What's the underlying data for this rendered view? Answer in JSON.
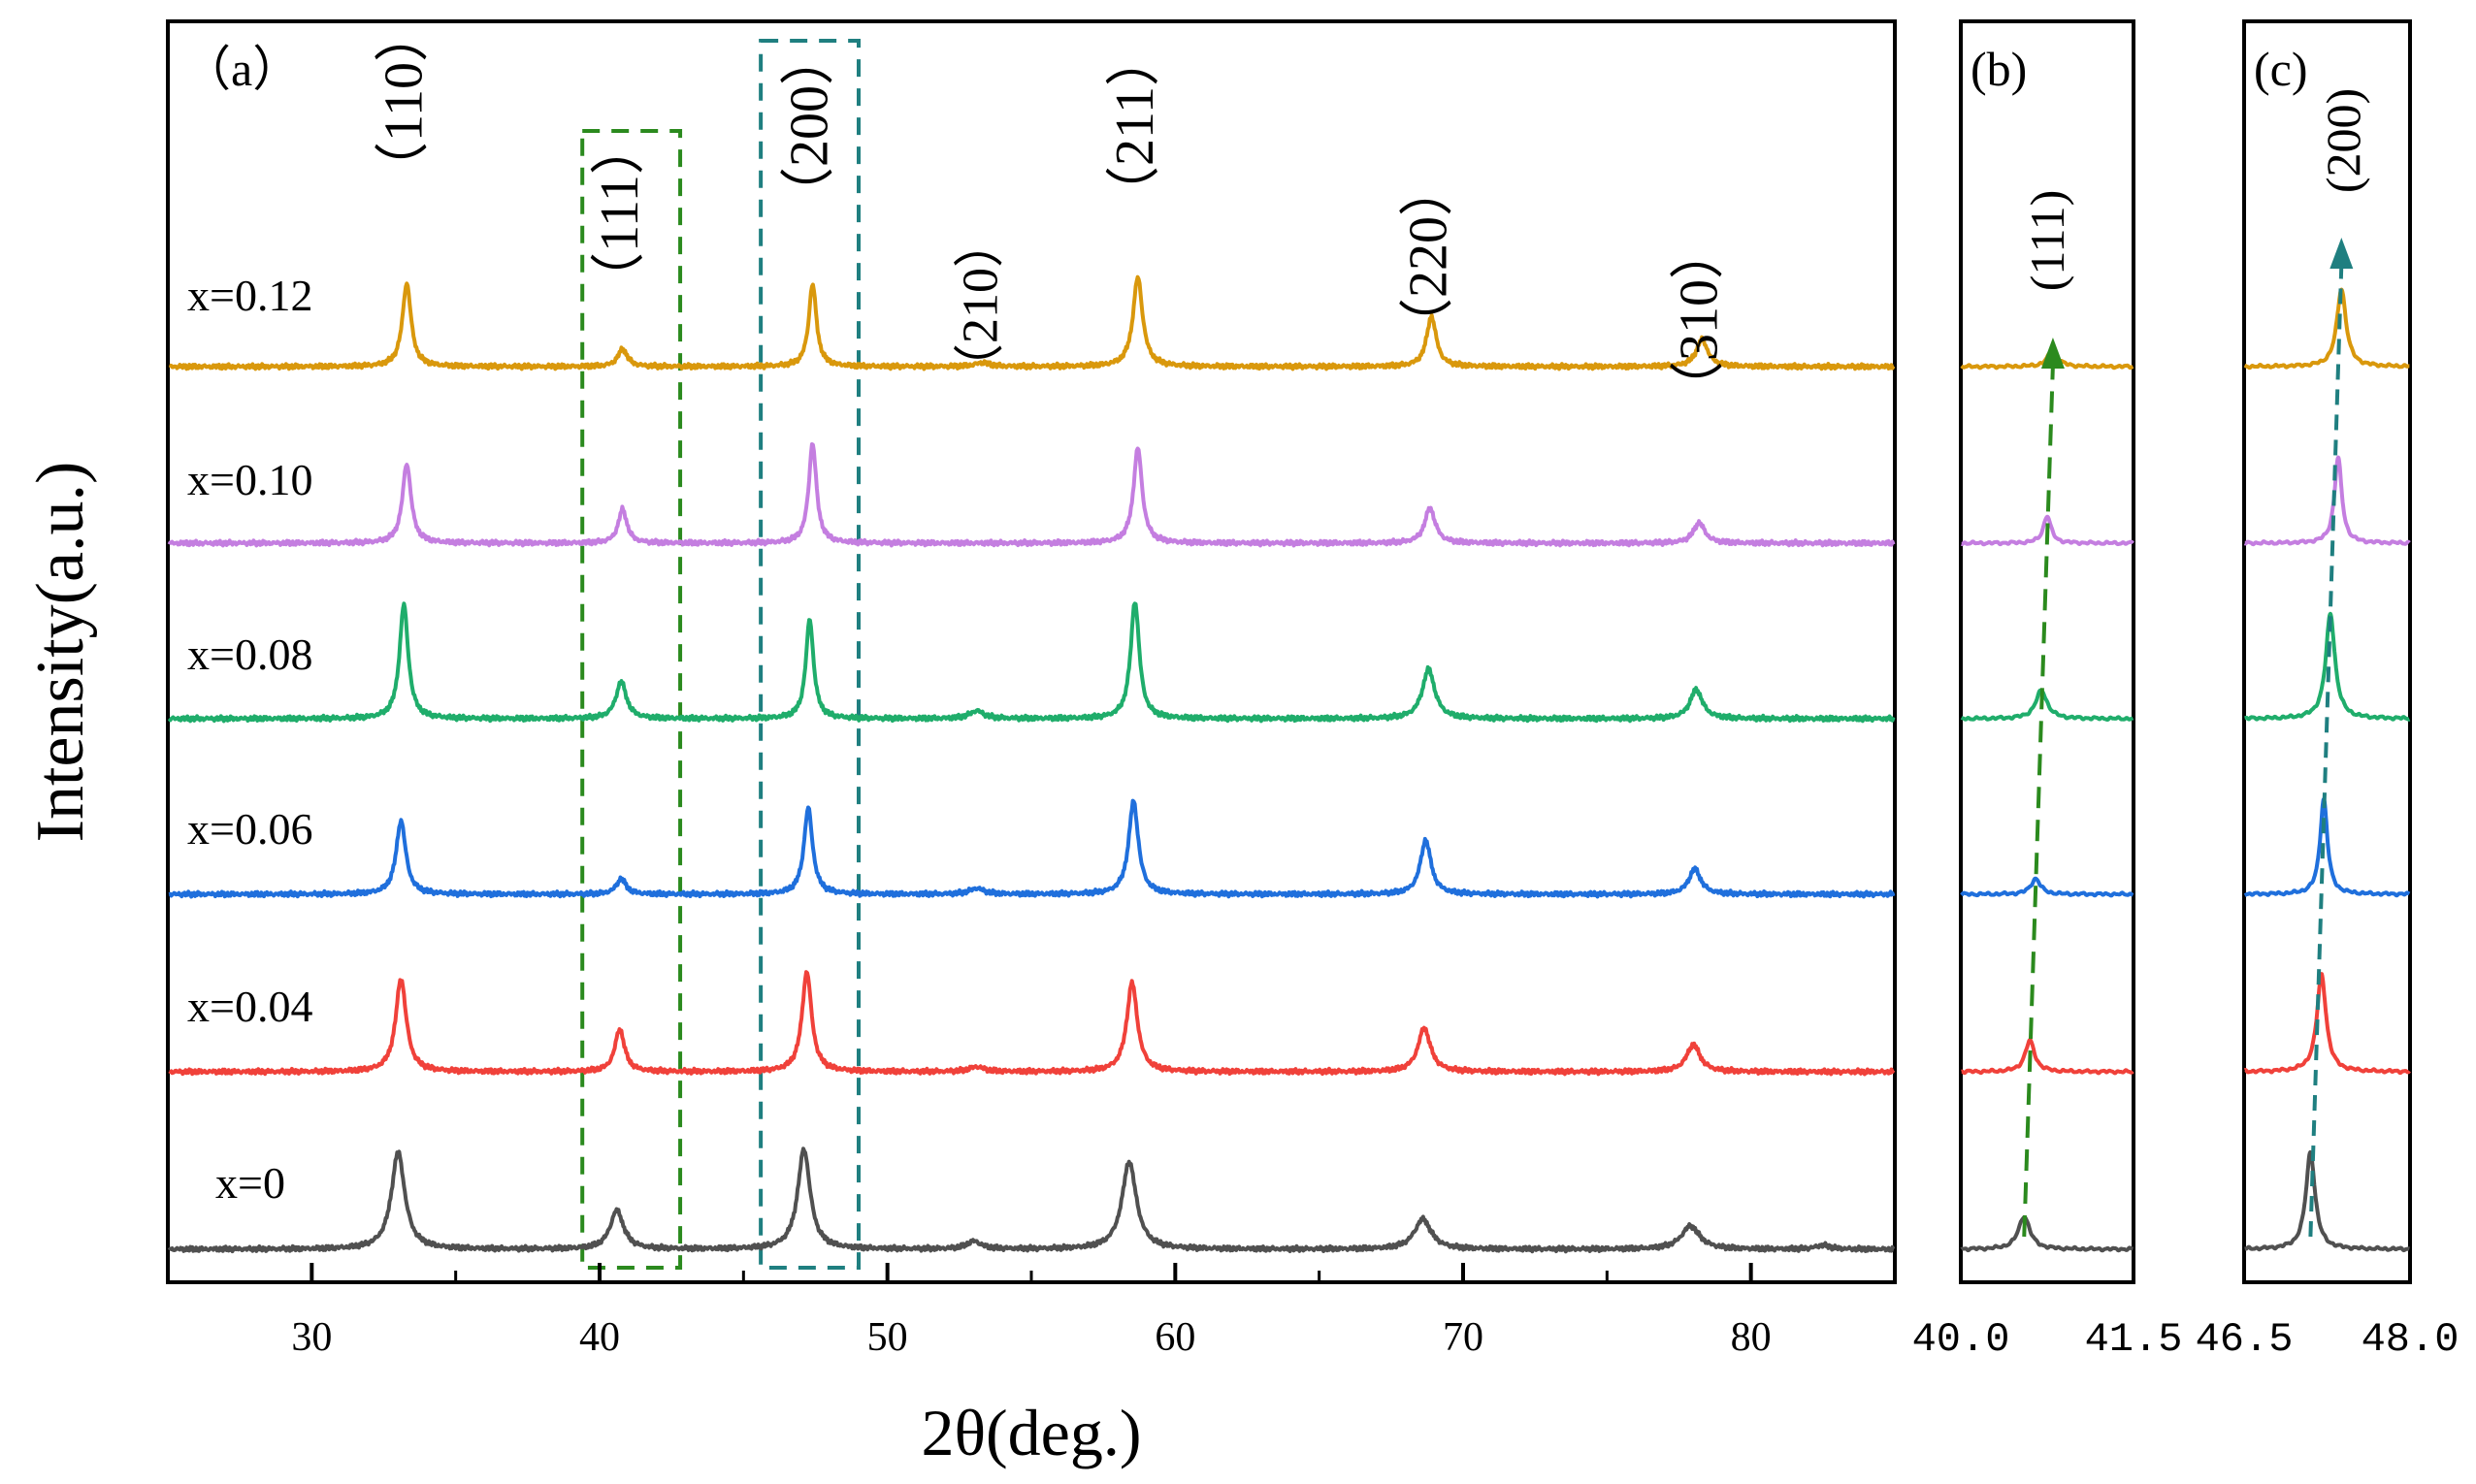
{
  "chart_data": [
    {
      "panel": "a",
      "type": "line",
      "panel_label": "（a）",
      "xlabel": "2θ(deg.)",
      "ylabel": "Intensity(a.u.)",
      "xlim": [
        25,
        85
      ],
      "xticks": [
        30,
        40,
        50,
        60,
        70,
        80
      ],
      "minor_xticks": [
        35,
        45,
        55,
        65,
        75
      ],
      "series": [
        {
          "name": "x=0",
          "color": "#505050",
          "peaks": [
            [
              33.0,
              100,
              0.28
            ],
            [
              40.6,
              40,
              0.28
            ],
            [
              47.1,
              103,
              0.26
            ],
            [
              53.0,
              8,
              0.3
            ],
            [
              58.4,
              90,
              0.3
            ],
            [
              68.6,
              31,
              0.35
            ],
            [
              77.9,
              24,
              0.38
            ],
            [
              82.5,
              4,
              0.3
            ]
          ]
        },
        {
          "name": "x=0.04",
          "color": "#f0413a",
          "peaks": [
            [
              33.1,
              96,
              0.22
            ],
            [
              40.7,
              44,
              0.2
            ],
            [
              47.2,
              103,
              0.2
            ],
            [
              53.1,
              5,
              0.3
            ],
            [
              58.5,
              92,
              0.22
            ],
            [
              68.65,
              45,
              0.26
            ],
            [
              78.0,
              28,
              0.28
            ]
          ]
        },
        {
          "name": "x=0.06",
          "color": "#1f6fdc",
          "peaks": [
            [
              33.1,
              76,
              0.2
            ],
            [
              40.75,
              16,
              0.2
            ],
            [
              47.25,
              89,
              0.18
            ],
            [
              53.1,
              6,
              0.3
            ],
            [
              58.55,
              96,
              0.2
            ],
            [
              68.7,
              56,
              0.22
            ],
            [
              78.05,
              26,
              0.25
            ]
          ]
        },
        {
          "name": "x=0.08",
          "color": "#1fad6b",
          "peaks": [
            [
              33.2,
              118,
              0.18
            ],
            [
              40.75,
              38,
              0.22
            ],
            [
              47.3,
              103,
              0.16
            ],
            [
              53.1,
              8,
              0.3
            ],
            [
              58.6,
              121,
              0.18
            ],
            [
              68.8,
              51,
              0.26
            ],
            [
              78.1,
              30,
              0.26
            ]
          ]
        },
        {
          "name": "x=0.10",
          "color": "#c47ee0",
          "peaks": [
            [
              33.3,
              82,
              0.18
            ],
            [
              40.8,
              35,
              0.18
            ],
            [
              47.4,
              103,
              0.16
            ],
            [
              58.7,
              98,
              0.18
            ],
            [
              68.85,
              36,
              0.22
            ],
            [
              78.2,
              21,
              0.24
            ]
          ]
        },
        {
          "name": "x=0.12",
          "color": "#d9980c",
          "peaks": [
            [
              33.3,
              86,
              0.18
            ],
            [
              40.8,
              18,
              0.2
            ],
            [
              47.4,
              85,
              0.16
            ],
            [
              53.3,
              4,
              0.3
            ],
            [
              58.7,
              92,
              0.2
            ],
            [
              68.9,
              52,
              0.2
            ],
            [
              78.3,
              28,
              0.24
            ]
          ]
        }
      ],
      "annotations": [
        {
          "text": "（110）",
          "x": 33.2
        },
        {
          "text": "（111）",
          "x": 40.7
        },
        {
          "text": "（200）",
          "x": 47.3
        },
        {
          "text": "（210）",
          "x": 53.2
        },
        {
          "text": "（211）",
          "x": 58.6
        },
        {
          "text": "（220）",
          "x": 68.8
        },
        {
          "text": "（310）",
          "x": 78.2
        }
      ],
      "boxes": [
        {
          "x_range": [
            39.4,
            42.8
          ],
          "color": "#2b8a1e"
        },
        {
          "x_range": [
            45.6,
            49.0
          ],
          "color": "#1f7f80"
        }
      ]
    },
    {
      "panel": "b",
      "type": "line",
      "panel_label": "(b)",
      "annotation": "(111)",
      "xlim": [
        40.0,
        41.5
      ],
      "xtick_labels": [
        "40.0",
        "41.5"
      ],
      "series": [
        {
          "name": "x=0",
          "color": "#505050",
          "peaks": [
            [
              40.55,
              34,
              0.06
            ]
          ]
        },
        {
          "name": "x=0.04",
          "color": "#f0413a",
          "peaks": [
            [
              40.6,
              32,
              0.05
            ]
          ]
        },
        {
          "name": "x=0.06",
          "color": "#1f6fdc",
          "peaks": [
            [
              40.65,
              16,
              0.05
            ]
          ]
        },
        {
          "name": "x=0.08",
          "color": "#1fad6b",
          "peaks": [
            [
              40.7,
              29,
              0.06
            ]
          ]
        },
        {
          "name": "x=0.10",
          "color": "#c47ee0",
          "peaks": [
            [
              40.75,
              28,
              0.04
            ]
          ]
        },
        {
          "name": "x=0.12",
          "color": "#d9980c",
          "peaks": [
            [
              40.8,
              18,
              0.05
            ]
          ]
        }
      ],
      "trend_line": {
        "x": [
          40.55,
          40.8
        ],
        "color": "#2b8a1e"
      }
    },
    {
      "panel": "c",
      "type": "line",
      "panel_label": "(c)",
      "annotation": "(200)",
      "xlim": [
        46.5,
        48.0
      ],
      "xtick_labels": [
        "46.5",
        "48.0"
      ],
      "series": [
        {
          "name": "x=0",
          "color": "#505050",
          "peaks": [
            [
              47.1,
              100,
              0.05
            ]
          ]
        },
        {
          "name": "x=0.04",
          "color": "#f0413a",
          "peaks": [
            [
              47.2,
              100,
              0.05
            ]
          ]
        },
        {
          "name": "x=0.06",
          "color": "#1f6fdc",
          "peaks": [
            [
              47.22,
              98,
              0.04
            ]
          ]
        },
        {
          "name": "x=0.08",
          "color": "#1fad6b",
          "peaks": [
            [
              47.28,
              108,
              0.05
            ]
          ]
        },
        {
          "name": "x=0.10",
          "color": "#c47ee0",
          "peaks": [
            [
              47.35,
              88,
              0.04
            ]
          ]
        },
        {
          "name": "x=0.12",
          "color": "#d9980c",
          "peaks": [
            [
              47.38,
              80,
              0.05
            ]
          ]
        }
      ],
      "trend_line": {
        "x": [
          47.1,
          47.38
        ],
        "color": "#1f7f80"
      }
    }
  ]
}
